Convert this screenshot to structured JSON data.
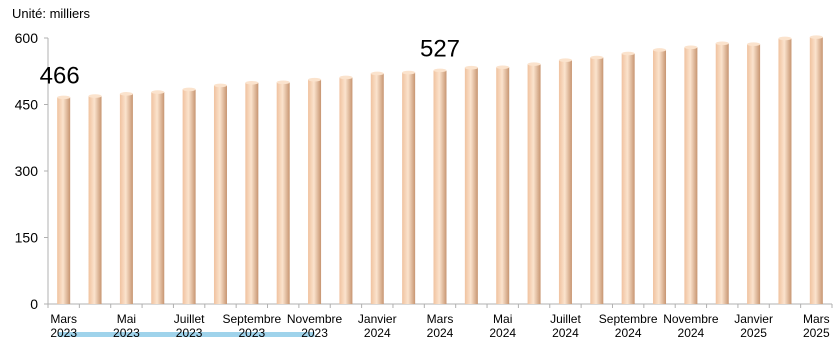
{
  "unit_label": "Unité: milliers",
  "chart_data": {
    "type": "bar",
    "title": "",
    "xlabel": "",
    "ylabel": "",
    "ylim": [
      0,
      600
    ],
    "yticks": [
      0,
      150,
      300,
      450,
      600
    ],
    "grid": false,
    "legend": "none",
    "categories": [
      "Mars 2023",
      "Avril 2023",
      "Mai 2023",
      "Juin 2023",
      "Juillet 2023",
      "Août 2023",
      "Septembre 2023",
      "Octobre 2023",
      "Novembre 2023",
      "Décembre 2023",
      "Janvier 2024",
      "Février 2024",
      "Mars 2024",
      "Avril 2024",
      "Mai 2024",
      "Juin 2024",
      "Juillet 2024",
      "Août 2024",
      "Septembre 2024",
      "Octobre 2024",
      "Novembre 2024",
      "Décembre 2024",
      "Janvier 2025",
      "Février 2025",
      "Mars 2025"
    ],
    "values": [
      466,
      469,
      474,
      478,
      484,
      493,
      499,
      500,
      506,
      511,
      520,
      522,
      527,
      533,
      534,
      541,
      550,
      556,
      565,
      573,
      579,
      588,
      586,
      599,
      602
    ],
    "tick_labels": [
      {
        "index": 0,
        "line1": "Mars",
        "line2": "2023"
      },
      {
        "index": 2,
        "line1": "Mai",
        "line2": "2023"
      },
      {
        "index": 4,
        "line1": "Juillet",
        "line2": "2023"
      },
      {
        "index": 6,
        "line1": "Septembre",
        "line2": "2023"
      },
      {
        "index": 8,
        "line1": "Novembre",
        "line2": "2023"
      },
      {
        "index": 10,
        "line1": "Janvier",
        "line2": "2024"
      },
      {
        "index": 12,
        "line1": "Mars",
        "line2": "2024"
      },
      {
        "index": 14,
        "line1": "Mai",
        "line2": "2024"
      },
      {
        "index": 16,
        "line1": "Juillet",
        "line2": "2024"
      },
      {
        "index": 18,
        "line1": "Septembre",
        "line2": "2024"
      },
      {
        "index": 20,
        "line1": "Novembre",
        "line2": "2024"
      },
      {
        "index": 22,
        "line1": "Janvier",
        "line2": "2025"
      },
      {
        "index": 24,
        "line1": "Mars",
        "line2": "2025"
      }
    ],
    "annotations": [
      {
        "index": 0,
        "text": "466"
      },
      {
        "index": 12,
        "text": "527"
      }
    ],
    "colors": {
      "bar_light": "#fbe3cd",
      "bar_mid": "#f0c29f",
      "bar_dark": "#c79571",
      "axis": "#b0b0b0",
      "highlight": "#8ecbe8"
    }
  }
}
